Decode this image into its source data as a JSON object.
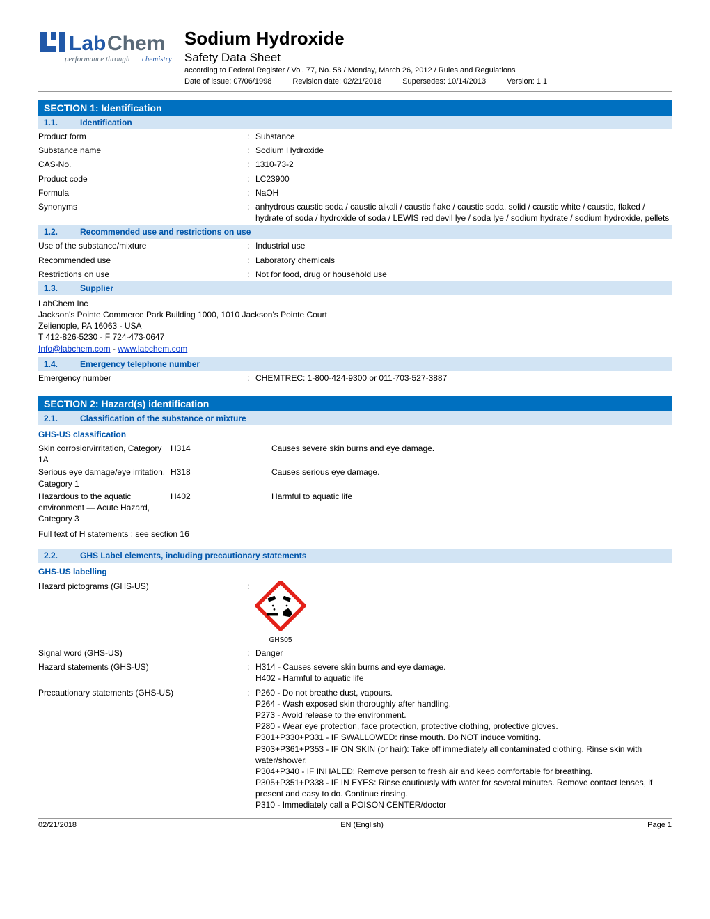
{
  "colors": {
    "section_bg": "#0070c0",
    "section_text": "#ffffff",
    "sub_bg": "#d2e4f4",
    "sub_text": "#0055aa",
    "logo_blue": "#2158a8",
    "logo_gray": "#5a6a78",
    "pictogram_red": "#e32119"
  },
  "logo": {
    "brand": "LabChem",
    "tagline": "performance through chemistry"
  },
  "header": {
    "title": "Sodium Hydroxide",
    "subtitle": "Safety Data Sheet",
    "regulation": "according to Federal Register / Vol. 77, No. 58 / Monday, March 26, 2012 / Rules and Regulations",
    "issue_label": "Date of issue: 07/06/1998",
    "revision_label": "Revision date: 02/21/2018",
    "supersedes_label": "Supersedes: 10/14/2013",
    "version_label": "Version: 1.1"
  },
  "section1": {
    "title": "SECTION 1: Identification",
    "s11_num": "1.1.",
    "s11_title": "Identification",
    "rows11": [
      {
        "label": "Product form",
        "value": "Substance"
      },
      {
        "label": "Substance name",
        "value": "Sodium Hydroxide"
      },
      {
        "label": "CAS-No.",
        "value": "1310-73-2"
      },
      {
        "label": "Product code",
        "value": "LC23900"
      },
      {
        "label": "Formula",
        "value": "NaOH"
      },
      {
        "label": "Synonyms",
        "value": "anhydrous caustic soda / caustic alkali / caustic flake / caustic soda, solid / caustic white / caustic, flaked / hydrate of soda / hydroxide of soda / LEWIS red devil lye / soda lye / sodium hydrate / sodium hydroxide, pellets"
      }
    ],
    "s12_num": "1.2.",
    "s12_title": "Recommended use and restrictions on use",
    "rows12": [
      {
        "label": "Use of the substance/mixture",
        "value": "Industrial use"
      },
      {
        "label": "Recommended use",
        "value": "Laboratory chemicals"
      },
      {
        "label": "Restrictions on use",
        "value": "Not for food, drug or household use"
      }
    ],
    "s13_num": "1.3.",
    "s13_title": "Supplier",
    "supplier": {
      "name": "LabChem Inc",
      "addr1": "Jackson's Pointe Commerce Park Building 1000, 1010 Jackson's Pointe Court",
      "addr2": "Zelienople, PA 16063 - USA",
      "phone": "T 412-826-5230 - F 724-473-0647",
      "email": "Info@labchem.com",
      "sep": " - ",
      "web": "www.labchem.com"
    },
    "s14_num": "1.4.",
    "s14_title": "Emergency telephone number",
    "rows14": [
      {
        "label": "Emergency number",
        "value": "CHEMTREC: 1-800-424-9300 or 011-703-527-3887"
      }
    ]
  },
  "section2": {
    "title": "SECTION 2: Hazard(s) identification",
    "s21_num": "2.1.",
    "s21_title": "Classification of the substance or mixture",
    "ghs_class_heading": "GHS-US classification",
    "classifications": [
      {
        "name": "Skin corrosion/irritation, Category 1A",
        "code": "H314",
        "desc": "Causes severe skin burns and eye damage."
      },
      {
        "name": "Serious eye damage/eye irritation, Category 1",
        "code": "H318",
        "desc": "Causes serious eye damage."
      },
      {
        "name": "Hazardous to the aquatic environment — Acute Hazard, Category 3",
        "code": "H402",
        "desc": "Harmful to aquatic life"
      }
    ],
    "full_text_note": "Full text of H statements : see section 16",
    "s22_num": "2.2.",
    "s22_title": "GHS Label elements, including precautionary statements",
    "ghs_label_heading": "GHS-US labelling",
    "pictogram_label": "Hazard pictograms (GHS-US)",
    "pictogram_code": "GHS05",
    "signal_label": "Signal word (GHS-US)",
    "signal_value": "Danger",
    "hazard_stmt_label": "Hazard statements (GHS-US)",
    "hazard_stmts": [
      "H314 - Causes severe skin burns and eye damage.",
      "H402 - Harmful to aquatic life"
    ],
    "precaution_label": "Precautionary statements (GHS-US)",
    "precautions": [
      "P260 - Do not breathe dust, vapours.",
      "P264 - Wash exposed skin thoroughly after handling.",
      "P273 - Avoid release to the environment.",
      "P280 - Wear eye protection, face protection, protective clothing, protective gloves.",
      "P301+P330+P331 - IF SWALLOWED: rinse mouth. Do NOT induce vomiting.",
      "P303+P361+P353 - IF ON SKIN (or hair): Take off immediately all contaminated clothing. Rinse skin with water/shower.",
      "P304+P340 - IF INHALED: Remove person to fresh air and keep comfortable for breathing.",
      "P305+P351+P338 - IF IN EYES: Rinse cautiously with water for several minutes. Remove contact lenses, if present and easy to do. Continue rinsing.",
      "P310 - Immediately call a POISON CENTER/doctor"
    ]
  },
  "footer": {
    "date": "02/21/2018",
    "lang": "EN (English)",
    "page": "Page 1"
  }
}
